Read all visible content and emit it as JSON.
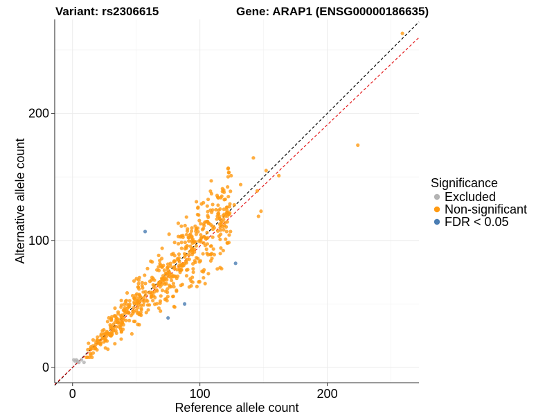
{
  "chart_data": {
    "type": "scatter",
    "title_left": "Variant: rs2306615",
    "title_right": "Gene: ARAP1 (ENSG00000186635)",
    "xlabel": "Reference allele count",
    "ylabel": "Alternative allele count",
    "xlim": [
      -14,
      272
    ],
    "ylim": [
      -12,
      274
    ],
    "x_ticks": [
      0,
      100,
      200
    ],
    "y_ticks": [
      0,
      100,
      200
    ],
    "grid": true,
    "legend": {
      "title": "Significance",
      "placement": "right",
      "items": [
        {
          "label": "Excluded",
          "color": "#b3b3b3"
        },
        {
          "label": "Non-significant",
          "color": "#ff9a12"
        },
        {
          "label": "FDR < 0.05",
          "color": "#4a7db3"
        }
      ]
    },
    "reference_lines": [
      {
        "name": "identity",
        "slope": 1.0,
        "intercept": 0,
        "color": "#000000",
        "dash": true
      },
      {
        "name": "fit",
        "slope": 0.955,
        "intercept": 0,
        "color": "#e31a1c",
        "dash": true
      }
    ],
    "series": [
      {
        "name": "Excluded",
        "color": "#b3b3b3",
        "points": [
          [
            1,
            6
          ],
          [
            3,
            6
          ],
          [
            5,
            4
          ],
          [
            7,
            6
          ],
          [
            9,
            4
          ],
          [
            4,
            5
          ],
          [
            2,
            5
          ]
        ]
      },
      {
        "name": "FDR < 0.05",
        "color": "#4a7db3",
        "points": [
          [
            57,
            107
          ],
          [
            128,
            82
          ],
          [
            88,
            50
          ],
          [
            75,
            39
          ]
        ]
      },
      {
        "name": "Non-significant",
        "color": "#ff9a12",
        "points": [
          [
            259,
            263
          ],
          [
            224,
            175
          ],
          [
            142,
            165
          ],
          [
            152,
            155
          ],
          [
            162,
            151
          ],
          [
            145,
            139
          ],
          [
            148,
            123
          ],
          [
            146,
            119
          ],
          [
            132,
            144
          ],
          [
            127,
            128
          ],
          [
            114,
            134
          ],
          [
            118,
            111
          ],
          [
            121,
            107
          ],
          [
            110,
            124
          ],
          [
            106,
            115
          ],
          [
            103,
            98
          ],
          [
            99,
            120
          ],
          [
            97,
            109
          ],
          [
            12,
            14
          ],
          [
            14,
            11
          ],
          [
            16,
            17
          ],
          [
            18,
            15
          ],
          [
            20,
            20
          ],
          [
            22,
            18
          ],
          [
            24,
            23
          ],
          [
            26,
            22
          ],
          [
            28,
            27
          ],
          [
            30,
            25
          ],
          [
            32,
            31
          ],
          [
            34,
            29
          ],
          [
            36,
            35
          ],
          [
            38,
            33
          ],
          [
            40,
            39
          ],
          [
            42,
            37
          ],
          [
            44,
            43
          ],
          [
            46,
            41
          ],
          [
            48,
            47
          ],
          [
            50,
            45
          ],
          [
            52,
            51
          ],
          [
            54,
            49
          ],
          [
            56,
            55
          ],
          [
            58,
            53
          ],
          [
            60,
            59
          ],
          [
            62,
            57
          ],
          [
            64,
            63
          ],
          [
            66,
            61
          ],
          [
            68,
            67
          ],
          [
            70,
            65
          ],
          [
            72,
            71
          ],
          [
            74,
            69
          ],
          [
            76,
            75
          ],
          [
            78,
            73
          ],
          [
            80,
            79
          ],
          [
            82,
            77
          ],
          [
            84,
            83
          ],
          [
            86,
            81
          ],
          [
            88,
            87
          ],
          [
            90,
            85
          ],
          [
            92,
            91
          ],
          [
            94,
            89
          ]
        ]
      }
    ]
  }
}
